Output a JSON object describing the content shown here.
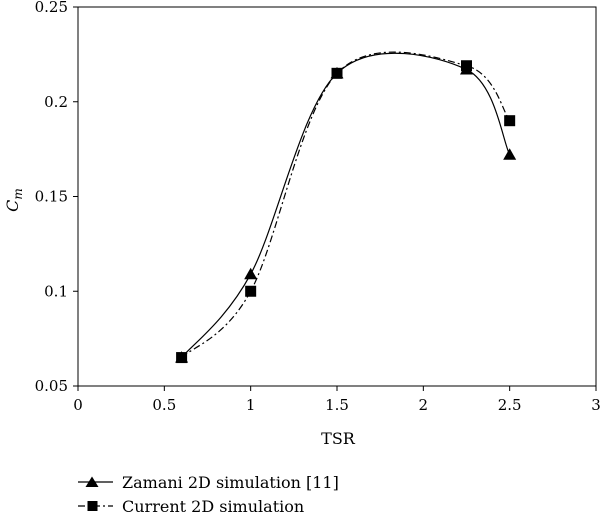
{
  "chart_data": {
    "type": "line",
    "xlabel": "TSR",
    "ylabel_main": "C",
    "ylabel_sub": "m",
    "xlim": [
      0,
      3
    ],
    "ylim": [
      0.05,
      0.25
    ],
    "x_ticks": [
      0,
      0.5,
      1,
      1.5,
      2,
      2.5,
      3
    ],
    "x_tick_labels": [
      "0",
      "0.5",
      "1",
      "1.5",
      "2",
      "2.5",
      "3"
    ],
    "y_ticks": [
      0.05,
      0.1,
      0.15,
      0.2,
      0.25
    ],
    "y_tick_labels": [
      "0.05",
      "0.1",
      "0.15",
      "0.2",
      "0.25"
    ],
    "grid": false,
    "legend_position": "bottom",
    "series": [
      {
        "name": "Zamani 2D simulation [11]",
        "marker": "triangle",
        "line_style": "solid",
        "color": "#000000",
        "x": [
          0.6,
          1.0,
          1.5,
          2.25,
          2.5
        ],
        "y": [
          0.065,
          0.109,
          0.215,
          0.217,
          0.172
        ]
      },
      {
        "name": "Current 2D simulation",
        "marker": "square",
        "line_style": "dash-dot",
        "color": "#000000",
        "x": [
          0.6,
          1.0,
          1.5,
          2.25,
          2.5
        ],
        "y": [
          0.065,
          0.1,
          0.215,
          0.219,
          0.19
        ]
      }
    ]
  }
}
